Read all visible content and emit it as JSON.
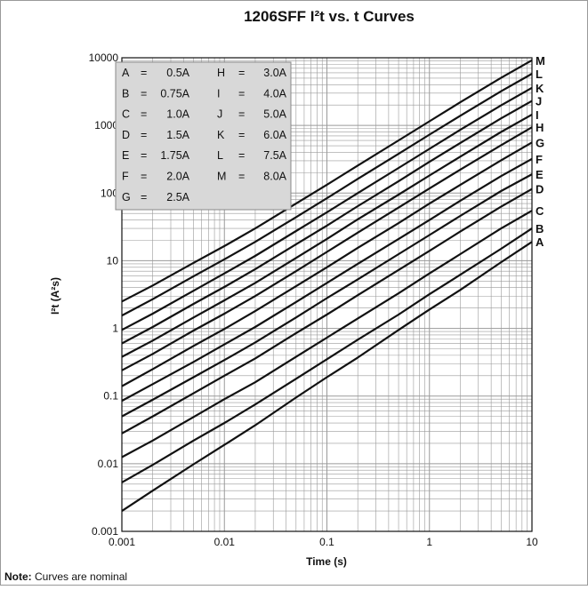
{
  "chart_data": {
    "type": "line",
    "title": "1206SFF I²t  vs. t Curves",
    "xlabel": "Time (s)",
    "ylabel": "I²t (A²s)",
    "xscale": "log",
    "yscale": "log",
    "xlim": [
      0.001,
      10
    ],
    "ylim": [
      0.001,
      10000
    ],
    "grid": true,
    "legend_position": "top-left",
    "x_ticks": [
      {
        "value": 0.001,
        "label": "0.001"
      },
      {
        "value": 0.01,
        "label": "0.01"
      },
      {
        "value": 0.1,
        "label": "0.1"
      },
      {
        "value": 1,
        "label": "1"
      },
      {
        "value": 10,
        "label": "10"
      }
    ],
    "y_ticks": [
      {
        "value": 0.001,
        "label": "0.001"
      },
      {
        "value": 0.01,
        "label": "0.01"
      },
      {
        "value": 0.1,
        "label": "0.1"
      },
      {
        "value": 1,
        "label": "1"
      },
      {
        "value": 10,
        "label": "10"
      },
      {
        "value": 100,
        "label": "100"
      },
      {
        "value": 1000,
        "label": "1000"
      },
      {
        "value": 10000,
        "label": "10000"
      }
    ],
    "x": [
      0.001,
      0.002,
      0.005,
      0.01,
      0.02,
      0.05,
      0.1,
      0.2,
      0.5,
      1,
      2,
      5,
      10
    ],
    "series": [
      {
        "name": "A",
        "current": "0.5A",
        "values": [
          0.002,
          0.004,
          0.0098,
          0.019,
          0.037,
          0.095,
          0.19,
          0.37,
          0.95,
          1.9,
          3.7,
          9.5,
          19
        ]
      },
      {
        "name": "B",
        "current": "0.75A",
        "values": [
          0.0053,
          0.0096,
          0.022,
          0.04,
          0.075,
          0.18,
          0.35,
          0.68,
          1.6,
          3.2,
          6.2,
          15,
          30
        ]
      },
      {
        "name": "C",
        "current": "1.0A",
        "values": [
          0.0125,
          0.022,
          0.049,
          0.09,
          0.16,
          0.38,
          0.73,
          1.4,
          3.3,
          6.5,
          12.5,
          30,
          55
        ]
      },
      {
        "name": "D",
        "current": "1.5A",
        "values": [
          0.028,
          0.05,
          0.11,
          0.2,
          0.36,
          0.85,
          1.6,
          3.1,
          7.3,
          14,
          27,
          63,
          115
        ]
      },
      {
        "name": "E",
        "current": "1.75A",
        "values": [
          0.05,
          0.088,
          0.19,
          0.34,
          0.62,
          1.45,
          2.8,
          5.3,
          12.5,
          24,
          46,
          107,
          190
        ]
      },
      {
        "name": "F",
        "current": "2.0A",
        "values": [
          0.085,
          0.15,
          0.32,
          0.58,
          1.05,
          2.45,
          4.7,
          9,
          21,
          40,
          77,
          178,
          320
        ]
      },
      {
        "name": "G",
        "current": "2.5A",
        "values": [
          0.14,
          0.25,
          0.55,
          0.98,
          1.8,
          4.2,
          8,
          15.5,
          36,
          70,
          132,
          305,
          560
        ]
      },
      {
        "name": "H",
        "current": "3.0A",
        "values": [
          0.24,
          0.42,
          0.93,
          1.65,
          3,
          7,
          13.5,
          26,
          61,
          117,
          222,
          510,
          940
        ]
      },
      {
        "name": "I",
        "current": "4.0A",
        "values": [
          0.38,
          0.66,
          1.45,
          2.6,
          4.7,
          11,
          21,
          41,
          95,
          182,
          345,
          800,
          1450
        ]
      },
      {
        "name": "J",
        "current": "5.0A",
        "values": [
          0.6,
          1.05,
          2.3,
          4.1,
          7.5,
          17.5,
          33,
          64,
          150,
          290,
          550,
          1270,
          2300
        ]
      },
      {
        "name": "K",
        "current": "6.0A",
        "values": [
          0.95,
          1.65,
          3.6,
          6.5,
          11.8,
          27.5,
          52,
          100,
          235,
          450,
          860,
          1980,
          3600
        ]
      },
      {
        "name": "L",
        "current": "7.5A",
        "values": [
          1.55,
          2.7,
          5.9,
          10.5,
          19,
          44,
          84,
          162,
          380,
          730,
          1390,
          3200,
          5800
        ]
      },
      {
        "name": "M",
        "current": "8.0A",
        "values": [
          2.5,
          4.3,
          9.3,
          16.5,
          30,
          70,
          133,
          255,
          600,
          1150,
          2200,
          5050,
          9200
        ]
      }
    ]
  },
  "legend": {
    "left_column": [
      {
        "letter": "A",
        "value": "0.5A"
      },
      {
        "letter": "B",
        "value": "0.75A"
      },
      {
        "letter": "C",
        "value": "1.0A"
      },
      {
        "letter": "D",
        "value": "1.5A"
      },
      {
        "letter": "E",
        "value": "1.75A"
      },
      {
        "letter": "F",
        "value": "2.0A"
      },
      {
        "letter": "G",
        "value": "2.5A"
      }
    ],
    "right_column": [
      {
        "letter": "H",
        "value": "3.0A"
      },
      {
        "letter": "I",
        "value": "4.0A"
      },
      {
        "letter": "J",
        "value": "5.0A"
      },
      {
        "letter": "K",
        "value": "6.0A"
      },
      {
        "letter": "L",
        "value": "7.5A"
      },
      {
        "letter": "M",
        "value": "8.0A"
      }
    ],
    "equals_sign": "=",
    "background_color": "#d8d8d8"
  },
  "note": {
    "label": "Note:",
    "text": " Curves are nominal"
  },
  "colors": {
    "curve": "#111111",
    "grid": "#9a9a9a",
    "frame": "#999999"
  }
}
